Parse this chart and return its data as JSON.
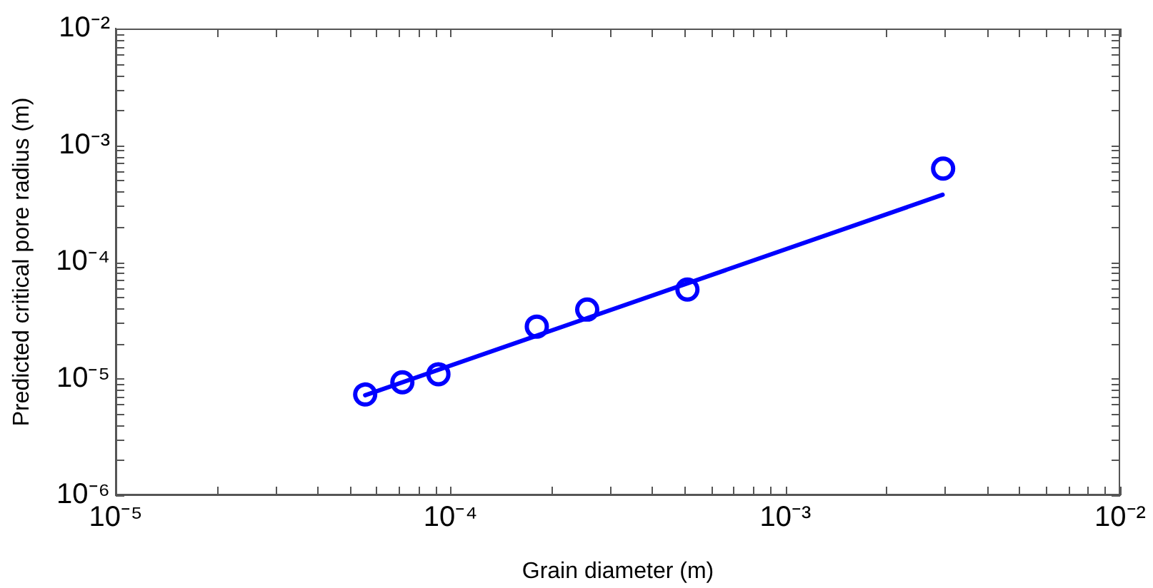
{
  "chart_data": {
    "type": "scatter",
    "xlabel": "Grain diameter (m)",
    "ylabel": "Predicted critical pore radius (m)",
    "log": "xy",
    "xlim": [
      1e-05,
      0.01
    ],
    "ylim": [
      1e-06,
      0.01
    ],
    "xticks": [
      {
        "value": 1e-05,
        "label": "10⁻⁵"
      },
      {
        "value": 2e-05,
        "label": null
      },
      {
        "value": 3e-05,
        "label": null
      },
      {
        "value": 4e-05,
        "label": null
      },
      {
        "value": 5e-05,
        "label": null
      },
      {
        "value": 6e-05,
        "label": null
      },
      {
        "value": 7e-05,
        "label": null
      },
      {
        "value": 8e-05,
        "label": null
      },
      {
        "value": 9e-05,
        "label": null
      },
      {
        "value": 0.0001,
        "label": "10⁻⁴"
      },
      {
        "value": 0.0002,
        "label": null
      },
      {
        "value": 0.0003,
        "label": null
      },
      {
        "value": 0.0004,
        "label": null
      },
      {
        "value": 0.0005,
        "label": null
      },
      {
        "value": 0.0006,
        "label": null
      },
      {
        "value": 0.0007,
        "label": null
      },
      {
        "value": 0.0008,
        "label": null
      },
      {
        "value": 0.0009,
        "label": null
      },
      {
        "value": 0.001,
        "label": "10⁻³"
      },
      {
        "value": 0.002,
        "label": null
      },
      {
        "value": 0.003,
        "label": null
      },
      {
        "value": 0.004,
        "label": null
      },
      {
        "value": 0.005,
        "label": null
      },
      {
        "value": 0.006,
        "label": null
      },
      {
        "value": 0.007,
        "label": null
      },
      {
        "value": 0.008,
        "label": null
      },
      {
        "value": 0.009,
        "label": null
      },
      {
        "value": 0.01,
        "label": "10⁻²"
      }
    ],
    "yticks": [
      {
        "value": 1e-06,
        "label": "10⁻⁶"
      },
      {
        "value": 2e-06,
        "label": null
      },
      {
        "value": 3e-06,
        "label": null
      },
      {
        "value": 4e-06,
        "label": null
      },
      {
        "value": 5e-06,
        "label": null
      },
      {
        "value": 6e-06,
        "label": null
      },
      {
        "value": 7e-06,
        "label": null
      },
      {
        "value": 8e-06,
        "label": null
      },
      {
        "value": 9e-06,
        "label": null
      },
      {
        "value": 1e-05,
        "label": "10⁻⁵"
      },
      {
        "value": 2e-05,
        "label": null
      },
      {
        "value": 3e-05,
        "label": null
      },
      {
        "value": 4e-05,
        "label": null
      },
      {
        "value": 5e-05,
        "label": null
      },
      {
        "value": 6e-05,
        "label": null
      },
      {
        "value": 7e-05,
        "label": null
      },
      {
        "value": 8e-05,
        "label": null
      },
      {
        "value": 9e-05,
        "label": null
      },
      {
        "value": 0.0001,
        "label": "10⁻⁴"
      },
      {
        "value": 0.0002,
        "label": null
      },
      {
        "value": 0.0003,
        "label": null
      },
      {
        "value": 0.0004,
        "label": null
      },
      {
        "value": 0.0005,
        "label": null
      },
      {
        "value": 0.0006,
        "label": null
      },
      {
        "value": 0.0007,
        "label": null
      },
      {
        "value": 0.0008,
        "label": null
      },
      {
        "value": 0.0009,
        "label": null
      },
      {
        "value": 0.001,
        "label": "10⁻³"
      },
      {
        "value": 0.002,
        "label": null
      },
      {
        "value": 0.003,
        "label": null
      },
      {
        "value": 0.004,
        "label": null
      },
      {
        "value": 0.005,
        "label": null
      },
      {
        "value": 0.006,
        "label": null
      },
      {
        "value": 0.007,
        "label": null
      },
      {
        "value": 0.008,
        "label": null
      },
      {
        "value": 0.009,
        "label": null
      },
      {
        "value": 0.01,
        "label": "10⁻²"
      }
    ],
    "series": [
      {
        "marker": "circle",
        "color": "#0000ff",
        "x": [
          5.56e-05,
          7.18e-05,
          9.2e-05,
          0.000181,
          0.000256,
          0.00051,
          0.00296
        ],
        "values": [
          7.3e-06,
          9.3e-06,
          1.09e-05,
          2.79e-05,
          3.9e-05,
          5.8e-05,
          0.00063
        ]
      },
      {
        "type": "line",
        "marker": "none",
        "line_style": "solid",
        "color": "#0000ff",
        "x": [
          5.56e-05,
          0.00295
        ],
        "values": [
          7.2e-06,
          0.000376
        ]
      }
    ]
  }
}
